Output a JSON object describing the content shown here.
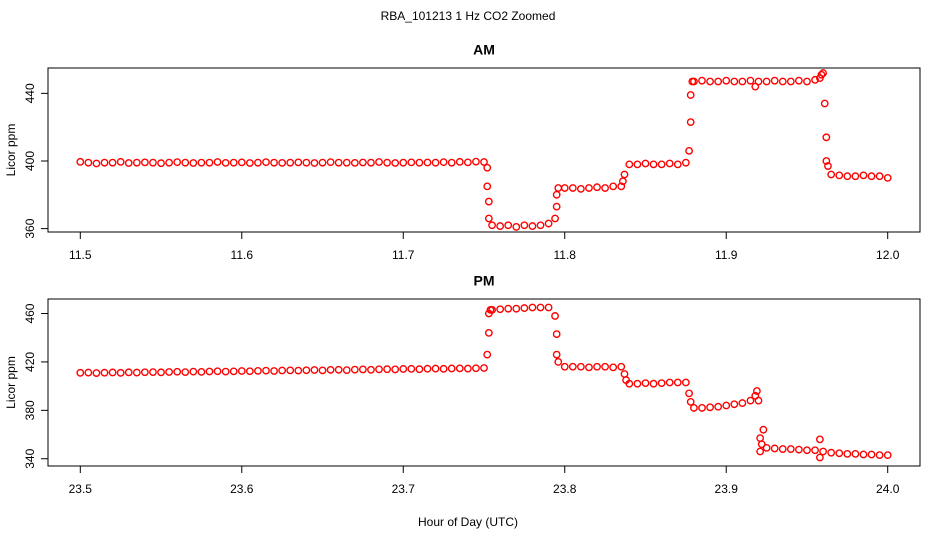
{
  "title": "RBA_101213  1 Hz CO2 Zoomed",
  "xlabel": "Hour of Day (UTC)",
  "chart_data": [
    {
      "type": "scatter",
      "title": "AM",
      "ylabel": "Licor ppm",
      "xlim": [
        11.48,
        12.02
      ],
      "ylim": [
        358,
        455
      ],
      "xticks": [
        11.5,
        11.6,
        11.7,
        11.8,
        11.9,
        {
          "value": 12,
          "label": "12.0"
        }
      ],
      "yticks": [
        360,
        400,
        440
      ],
      "x": [
        11.5,
        11.505,
        11.51,
        11.515,
        11.52,
        11.525,
        11.53,
        11.535,
        11.54,
        11.545,
        11.55,
        11.555,
        11.56,
        11.565,
        11.57,
        11.575,
        11.58,
        11.585,
        11.59,
        11.595,
        11.6,
        11.605,
        11.61,
        11.615,
        11.62,
        11.625,
        11.63,
        11.635,
        11.64,
        11.645,
        11.65,
        11.655,
        11.66,
        11.665,
        11.67,
        11.675,
        11.68,
        11.685,
        11.69,
        11.695,
        11.7,
        11.705,
        11.71,
        11.715,
        11.72,
        11.725,
        11.73,
        11.735,
        11.74,
        11.745,
        11.75,
        11.752,
        11.752,
        11.753,
        11.753,
        11.755,
        11.76,
        11.765,
        11.77,
        11.775,
        11.78,
        11.785,
        11.79,
        11.794,
        11.795,
        11.795,
        11.796,
        11.8,
        11.805,
        11.81,
        11.815,
        11.82,
        11.825,
        11.83,
        11.835,
        11.836,
        11.837,
        11.84,
        11.845,
        11.85,
        11.855,
        11.86,
        11.865,
        11.87,
        11.875,
        11.877,
        11.878,
        11.878,
        11.879,
        11.88,
        11.885,
        11.89,
        11.895,
        11.9,
        11.905,
        11.91,
        11.915,
        11.92,
        11.925,
        11.93,
        11.935,
        11.94,
        11.945,
        11.95,
        11.955,
        11.918,
        11.958,
        11.959,
        11.96,
        11.961,
        11.962,
        11.962,
        11.963,
        11.965,
        11.97,
        11.975,
        11.98,
        11.985,
        11.99,
        11.995,
        12.0
      ],
      "series": [
        {
          "color": "#ff0000",
          "values": [
            399.5,
            399,
            398.5,
            399,
            399,
            399.5,
            398.8,
            399,
            399.2,
            399,
            398.7,
            399,
            399.3,
            399,
            398.8,
            399,
            399,
            399.4,
            398.9,
            399,
            399.2,
            398.8,
            399,
            399.3,
            399,
            398.9,
            399,
            399.2,
            399,
            398.8,
            399,
            399.3,
            399,
            399,
            398.9,
            399.1,
            399,
            399.4,
            399,
            398.8,
            399,
            399.2,
            399,
            399.1,
            399,
            399.3,
            399,
            399.5,
            399.2,
            399.6,
            399.4,
            396,
            385,
            376,
            366,
            362,
            361.5,
            362,
            361,
            362,
            361.5,
            362,
            363,
            366,
            373,
            380,
            384,
            384,
            384,
            383.5,
            384,
            384.5,
            384,
            385,
            385,
            388,
            392,
            398,
            398,
            398.5,
            398,
            398,
            398.5,
            398,
            399,
            406,
            423,
            439,
            447,
            447,
            447.5,
            447,
            447,
            447.5,
            447,
            447,
            447.5,
            447,
            447,
            447.5,
            447,
            447,
            447.5,
            447,
            448,
            444,
            449,
            451,
            452,
            434,
            414,
            400,
            397,
            392,
            391.5,
            391,
            391,
            391.5,
            391,
            391,
            390
          ]
        }
      ]
    },
    {
      "type": "scatter",
      "title": "PM",
      "ylabel": "Licor ppm",
      "xlim": [
        23.48,
        24.02
      ],
      "ylim": [
        334,
        472
      ],
      "xticks": [
        23.5,
        23.6,
        23.7,
        23.8,
        23.9,
        {
          "value": 24,
          "label": "24.0"
        }
      ],
      "yticks": [
        340,
        380,
        420,
        460
      ],
      "x": [
        23.5,
        23.505,
        23.51,
        23.515,
        23.52,
        23.525,
        23.53,
        23.535,
        23.54,
        23.545,
        23.55,
        23.555,
        23.56,
        23.565,
        23.57,
        23.575,
        23.58,
        23.585,
        23.59,
        23.595,
        23.6,
        23.605,
        23.61,
        23.615,
        23.62,
        23.625,
        23.63,
        23.635,
        23.64,
        23.645,
        23.65,
        23.655,
        23.66,
        23.665,
        23.67,
        23.675,
        23.68,
        23.685,
        23.69,
        23.695,
        23.7,
        23.705,
        23.71,
        23.715,
        23.72,
        23.725,
        23.73,
        23.735,
        23.74,
        23.745,
        23.75,
        23.752,
        23.753,
        23.753,
        23.754,
        23.755,
        23.76,
        23.765,
        23.77,
        23.775,
        23.78,
        23.785,
        23.79,
        23.794,
        23.795,
        23.795,
        23.796,
        23.8,
        23.805,
        23.81,
        23.815,
        23.82,
        23.825,
        23.83,
        23.835,
        23.837,
        23.838,
        23.84,
        23.845,
        23.85,
        23.855,
        23.86,
        23.865,
        23.87,
        23.875,
        23.877,
        23.878,
        23.88,
        23.885,
        23.89,
        23.895,
        23.9,
        23.905,
        23.91,
        23.915,
        23.918,
        23.919,
        23.92,
        23.921,
        23.921,
        23.922,
        23.923,
        23.925,
        23.93,
        23.935,
        23.94,
        23.945,
        23.95,
        23.955,
        23.958,
        23.958,
        23.96,
        23.965,
        23.97,
        23.975,
        23.98,
        23.985,
        23.99,
        23.995,
        24.0
      ],
      "series": [
        {
          "color": "#ff0000",
          "values": [
            411,
            411.2,
            410.8,
            411.1,
            411.3,
            411,
            411.4,
            411.2,
            411.5,
            411.6,
            411.4,
            411.7,
            411.9,
            411.6,
            412,
            411.8,
            412.1,
            412.3,
            412,
            412.2,
            412.5,
            412.3,
            412.6,
            412.8,
            412.5,
            412.9,
            413,
            412.8,
            413.1,
            413.3,
            413,
            413.4,
            413.5,
            413.2,
            413.6,
            413.8,
            413.5,
            413.9,
            414,
            413.8,
            414.2,
            414.3,
            414,
            414.4,
            414.5,
            414.3,
            414.6,
            414.7,
            414.5,
            414.8,
            415,
            426,
            444,
            460,
            463,
            463,
            463.5,
            464,
            464,
            464.5,
            465,
            465,
            465,
            458,
            443,
            426,
            420,
            416,
            416,
            416,
            415.5,
            416,
            416,
            415.5,
            416,
            410,
            405,
            402,
            402,
            402.5,
            402,
            402.5,
            403,
            403,
            403,
            394,
            387,
            382,
            382,
            382.5,
            383,
            384,
            385,
            386,
            388,
            392,
            396,
            388,
            357,
            346,
            352,
            364,
            349,
            348.5,
            348,
            348,
            347.5,
            347,
            347,
            356,
            341,
            346,
            345,
            344.5,
            344,
            344,
            343.5,
            343.5,
            343,
            343
          ]
        }
      ]
    }
  ]
}
